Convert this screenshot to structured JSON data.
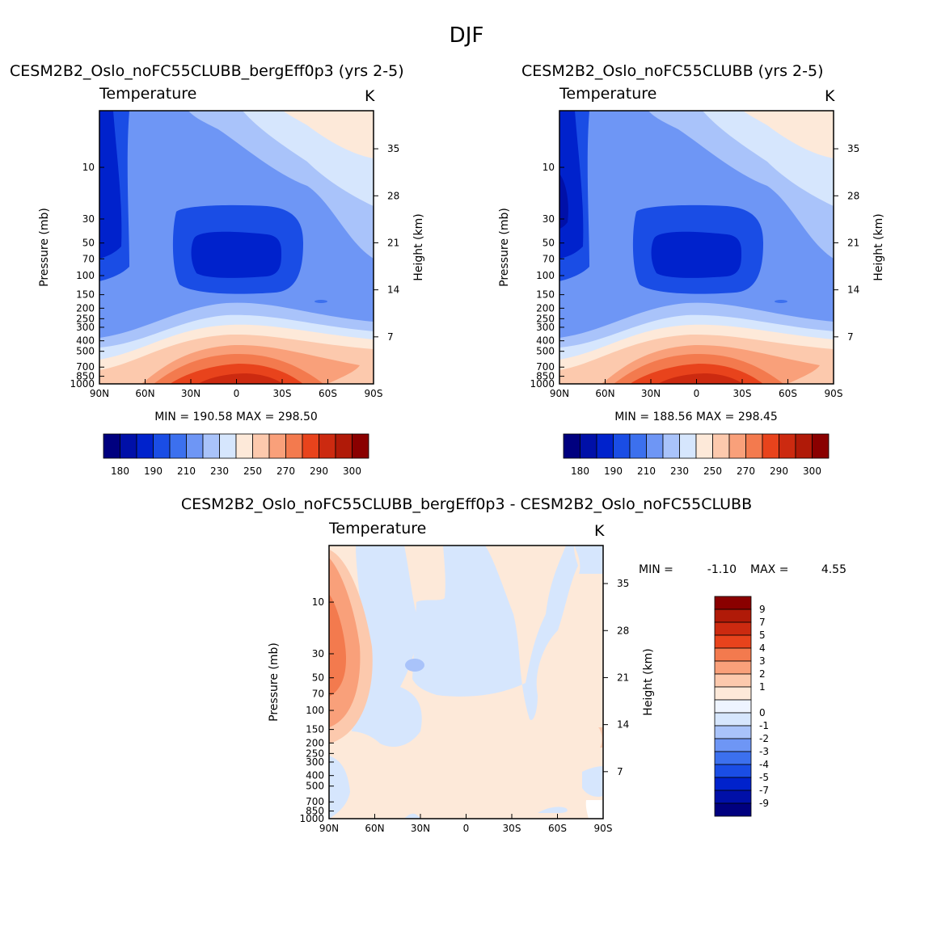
{
  "figure_title": "DJF",
  "colors": {
    "abs": [
      "#00007f",
      "#0010a8",
      "#0022cc",
      "#1a4de5",
      "#3c70ee",
      "#6e96f5",
      "#a9c3fa",
      "#d6e6fd",
      "#fde9d9",
      "#fcc9ad",
      "#f9a07a",
      "#f37a4e",
      "#e8431c",
      "#cc2a10",
      "#b01a08",
      "#8a0000"
    ],
    "diff": [
      "#00007f",
      "#0010a8",
      "#0022cc",
      "#1a4de5",
      "#3c70ee",
      "#6e96f5",
      "#a9c3fa",
      "#d6e6fd",
      "#eef4ff",
      "#fde9d9",
      "#fcc9ad",
      "#f9a07a",
      "#f37a4e",
      "#e8431c",
      "#cc2a10",
      "#b01a08",
      "#8a0000"
    ]
  },
  "chart_data": [
    {
      "type": "heatmap",
      "title": "CESM2B2_Oslo_noFC55CLUBB_bergEff0p3 (yrs 2-5)",
      "subtitle": "Temperature",
      "units": "K",
      "ylabel": "Pressure (mb)",
      "ylabel_right": "Height (km)",
      "x_ticks": [
        "90N",
        "60N",
        "30N",
        "0",
        "30S",
        "60S",
        "90S"
      ],
      "y_ticks": [
        "10",
        "30",
        "50",
        "70",
        "100",
        "150",
        "200",
        "250",
        "300",
        "400",
        "500",
        "700",
        "850",
        "1000"
      ],
      "y_ticks_right": [
        "35",
        "28",
        "21",
        "14",
        "7"
      ],
      "stats": "MIN = 190.58   MAX = 298.50",
      "colorbar_labels": [
        "180",
        "190",
        "210",
        "230",
        "250",
        "270",
        "290",
        "300"
      ]
    },
    {
      "type": "heatmap",
      "title": "CESM2B2_Oslo_noFC55CLUBB (yrs 2-5)",
      "subtitle": "Temperature",
      "units": "K",
      "ylabel": "Pressure (mb)",
      "ylabel_right": "Height (km)",
      "x_ticks": [
        "90N",
        "60N",
        "30N",
        "0",
        "30S",
        "60S",
        "90S"
      ],
      "y_ticks": [
        "10",
        "30",
        "50",
        "70",
        "100",
        "150",
        "200",
        "250",
        "300",
        "400",
        "500",
        "700",
        "850",
        "1000"
      ],
      "y_ticks_right": [
        "35",
        "28",
        "21",
        "14",
        "7"
      ],
      "stats": "MIN = 188.56   MAX = 298.45",
      "colorbar_labels": [
        "180",
        "190",
        "210",
        "230",
        "250",
        "270",
        "290",
        "300"
      ]
    },
    {
      "type": "heatmap",
      "title": "CESM2B2_Oslo_noFC55CLUBB_bergEff0p3 - CESM2B2_Oslo_noFC55CLUBB",
      "subtitle": "Temperature",
      "units": "K",
      "ylabel": "Pressure (mb)",
      "ylabel_right": "Height (km)",
      "x_ticks": [
        "90N",
        "60N",
        "30N",
        "0",
        "30S",
        "60S",
        "90S"
      ],
      "y_ticks": [
        "10",
        "30",
        "50",
        "70",
        "100",
        "150",
        "200",
        "250",
        "300",
        "400",
        "500",
        "700",
        "850",
        "1000"
      ],
      "y_ticks_right": [
        "35",
        "28",
        "21",
        "14",
        "7"
      ],
      "stats_min_label": "MIN =",
      "stats_min": "-1.10",
      "stats_max_label": "MAX =",
      "stats_max": "4.55",
      "colorbar_labels": [
        "9",
        "7",
        "5",
        "4",
        "3",
        "2",
        "1",
        "0",
        "-1",
        "-2",
        "-3",
        "-4",
        "-5",
        "-7",
        "-9"
      ]
    }
  ]
}
